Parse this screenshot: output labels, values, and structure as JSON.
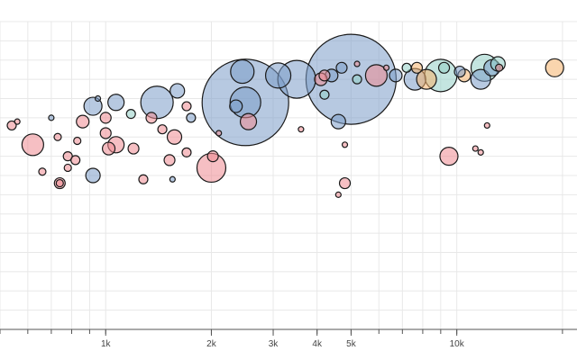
{
  "chart_data": {
    "type": "scatter",
    "title": "",
    "xlabel": "",
    "ylabel": "",
    "x_scale": "log",
    "xlim": [
      500,
      22000
    ],
    "ylim": [
      10,
      90
    ],
    "grid": true,
    "x_tick_labels": [
      {
        "value": 1000,
        "label": "1k"
      },
      {
        "value": 2000,
        "label": "2k"
      },
      {
        "value": 3000,
        "label": "3k"
      },
      {
        "value": 4000,
        "label": "4k"
      },
      {
        "value": 5000,
        "label": "5k"
      },
      {
        "value": 10000,
        "label": "10k"
      }
    ],
    "x_minor_ticks": [
      500,
      600,
      700,
      800,
      900,
      1000,
      2000,
      3000,
      4000,
      5000,
      6000,
      7000,
      8000,
      9000,
      10000,
      20000
    ],
    "colors": {
      "blue": "#7b9dc8",
      "red": "#ee8a92",
      "teal": "#93cfc7",
      "orange": "#f6b36b"
    },
    "points": [
      {
        "x": 2500,
        "y": 69,
        "size": 48,
        "color": "blue"
      },
      {
        "x": 5000,
        "y": 75,
        "size": 50,
        "color": "blue"
      },
      {
        "x": 3500,
        "y": 75,
        "size": 21,
        "color": "blue"
      },
      {
        "x": 1400,
        "y": 69,
        "size": 18,
        "color": "blue"
      },
      {
        "x": 2500,
        "y": 69,
        "size": 17,
        "color": "blue"
      },
      {
        "x": 2450,
        "y": 77,
        "size": 13,
        "color": "blue"
      },
      {
        "x": 3100,
        "y": 76,
        "size": 14,
        "color": "blue"
      },
      {
        "x": 5900,
        "y": 76,
        "size": 12,
        "color": "red"
      },
      {
        "x": 9000,
        "y": 76,
        "size": 18,
        "color": "teal"
      },
      {
        "x": 12000,
        "y": 78,
        "size": 15,
        "color": "teal"
      },
      {
        "x": 11700,
        "y": 75,
        "size": 11,
        "color": "blue"
      },
      {
        "x": 8200,
        "y": 75,
        "size": 11,
        "color": "orange"
      },
      {
        "x": 7600,
        "y": 75,
        "size": 12,
        "color": "blue"
      },
      {
        "x": 19000,
        "y": 78,
        "size": 10,
        "color": "orange"
      },
      {
        "x": 920,
        "y": 68,
        "size": 10,
        "color": "blue"
      },
      {
        "x": 1070,
        "y": 69,
        "size": 9,
        "color": "blue"
      },
      {
        "x": 1600,
        "y": 72,
        "size": 8,
        "color": "blue"
      },
      {
        "x": 2350,
        "y": 68,
        "size": 7,
        "color": "blue"
      },
      {
        "x": 2550,
        "y": 64,
        "size": 9,
        "color": "red"
      },
      {
        "x": 4600,
        "y": 64,
        "size": 8,
        "color": "blue"
      },
      {
        "x": 4400,
        "y": 76,
        "size": 7,
        "color": "blue"
      },
      {
        "x": 4700,
        "y": 78,
        "size": 6,
        "color": "blue"
      },
      {
        "x": 4100,
        "y": 75,
        "size": 7,
        "color": "red"
      },
      {
        "x": 4200,
        "y": 76,
        "size": 6,
        "color": "red"
      },
      {
        "x": 5200,
        "y": 75,
        "size": 5,
        "color": "teal"
      },
      {
        "x": 6700,
        "y": 76,
        "size": 7,
        "color": "blue"
      },
      {
        "x": 7200,
        "y": 78,
        "size": 5,
        "color": "teal"
      },
      {
        "x": 7700,
        "y": 78,
        "size": 6,
        "color": "orange"
      },
      {
        "x": 10500,
        "y": 76,
        "size": 7,
        "color": "orange"
      },
      {
        "x": 10200,
        "y": 77,
        "size": 6,
        "color": "blue"
      },
      {
        "x": 13100,
        "y": 79,
        "size": 8,
        "color": "teal"
      },
      {
        "x": 12600,
        "y": 78,
        "size": 9,
        "color": "blue"
      },
      {
        "x": 9200,
        "y": 78,
        "size": 6,
        "color": "teal"
      },
      {
        "x": 620,
        "y": 58,
        "size": 12,
        "color": "red"
      },
      {
        "x": 860,
        "y": 64,
        "size": 7,
        "color": "red"
      },
      {
        "x": 1000,
        "y": 65,
        "size": 6,
        "color": "red"
      },
      {
        "x": 1180,
        "y": 66,
        "size": 5,
        "color": "teal"
      },
      {
        "x": 1350,
        "y": 65,
        "size": 6,
        "color": "red"
      },
      {
        "x": 1570,
        "y": 60,
        "size": 8,
        "color": "red"
      },
      {
        "x": 1700,
        "y": 68,
        "size": 5,
        "color": "red"
      },
      {
        "x": 1750,
        "y": 65,
        "size": 5,
        "color": "blue"
      },
      {
        "x": 2020,
        "y": 55,
        "size": 6,
        "color": "red"
      },
      {
        "x": 2000,
        "y": 52,
        "size": 16,
        "color": "red"
      },
      {
        "x": 1070,
        "y": 58,
        "size": 9,
        "color": "red"
      },
      {
        "x": 1020,
        "y": 57,
        "size": 7,
        "color": "red"
      },
      {
        "x": 1200,
        "y": 57,
        "size": 6,
        "color": "red"
      },
      {
        "x": 1450,
        "y": 62,
        "size": 5,
        "color": "red"
      },
      {
        "x": 1520,
        "y": 54,
        "size": 6,
        "color": "red"
      },
      {
        "x": 1700,
        "y": 56,
        "size": 5,
        "color": "red"
      },
      {
        "x": 830,
        "y": 59,
        "size": 4,
        "color": "red"
      },
      {
        "x": 780,
        "y": 55,
        "size": 5,
        "color": "red"
      },
      {
        "x": 660,
        "y": 51,
        "size": 4,
        "color": "red"
      },
      {
        "x": 740,
        "y": 48,
        "size": 6,
        "color": "red"
      },
      {
        "x": 920,
        "y": 50,
        "size": 8,
        "color": "blue"
      },
      {
        "x": 780,
        "y": 52,
        "size": 4,
        "color": "red"
      },
      {
        "x": 820,
        "y": 54,
        "size": 5,
        "color": "red"
      },
      {
        "x": 740,
        "y": 48,
        "size": 4,
        "color": "red"
      },
      {
        "x": 1280,
        "y": 49,
        "size": 5,
        "color": "red"
      },
      {
        "x": 1550,
        "y": 49,
        "size": 3,
        "color": "blue"
      },
      {
        "x": 1000,
        "y": 61,
        "size": 6,
        "color": "red"
      },
      {
        "x": 540,
        "y": 63,
        "size": 5,
        "color": "red"
      },
      {
        "x": 560,
        "y": 64,
        "size": 3,
        "color": "red"
      },
      {
        "x": 700,
        "y": 65,
        "size": 3,
        "color": "blue"
      },
      {
        "x": 730,
        "y": 60,
        "size": 4,
        "color": "red"
      },
      {
        "x": 950,
        "y": 70,
        "size": 3,
        "color": "blue"
      },
      {
        "x": 3600,
        "y": 62,
        "size": 3,
        "color": "red"
      },
      {
        "x": 4200,
        "y": 71,
        "size": 5,
        "color": "teal"
      },
      {
        "x": 4800,
        "y": 58,
        "size": 3,
        "color": "red"
      },
      {
        "x": 4800,
        "y": 48,
        "size": 6,
        "color": "red"
      },
      {
        "x": 4600,
        "y": 45,
        "size": 3,
        "color": "red"
      },
      {
        "x": 9500,
        "y": 55,
        "size": 10,
        "color": "red"
      },
      {
        "x": 11300,
        "y": 57,
        "size": 3,
        "color": "red"
      },
      {
        "x": 11700,
        "y": 56,
        "size": 3,
        "color": "red"
      },
      {
        "x": 12200,
        "y": 63,
        "size": 3,
        "color": "red"
      },
      {
        "x": 5200,
        "y": 79,
        "size": 3,
        "color": "red"
      },
      {
        "x": 6300,
        "y": 78,
        "size": 3,
        "color": "red"
      },
      {
        "x": 2100,
        "y": 61,
        "size": 3,
        "color": "red"
      },
      {
        "x": 13200,
        "y": 78,
        "size": 4,
        "color": "red"
      }
    ]
  }
}
